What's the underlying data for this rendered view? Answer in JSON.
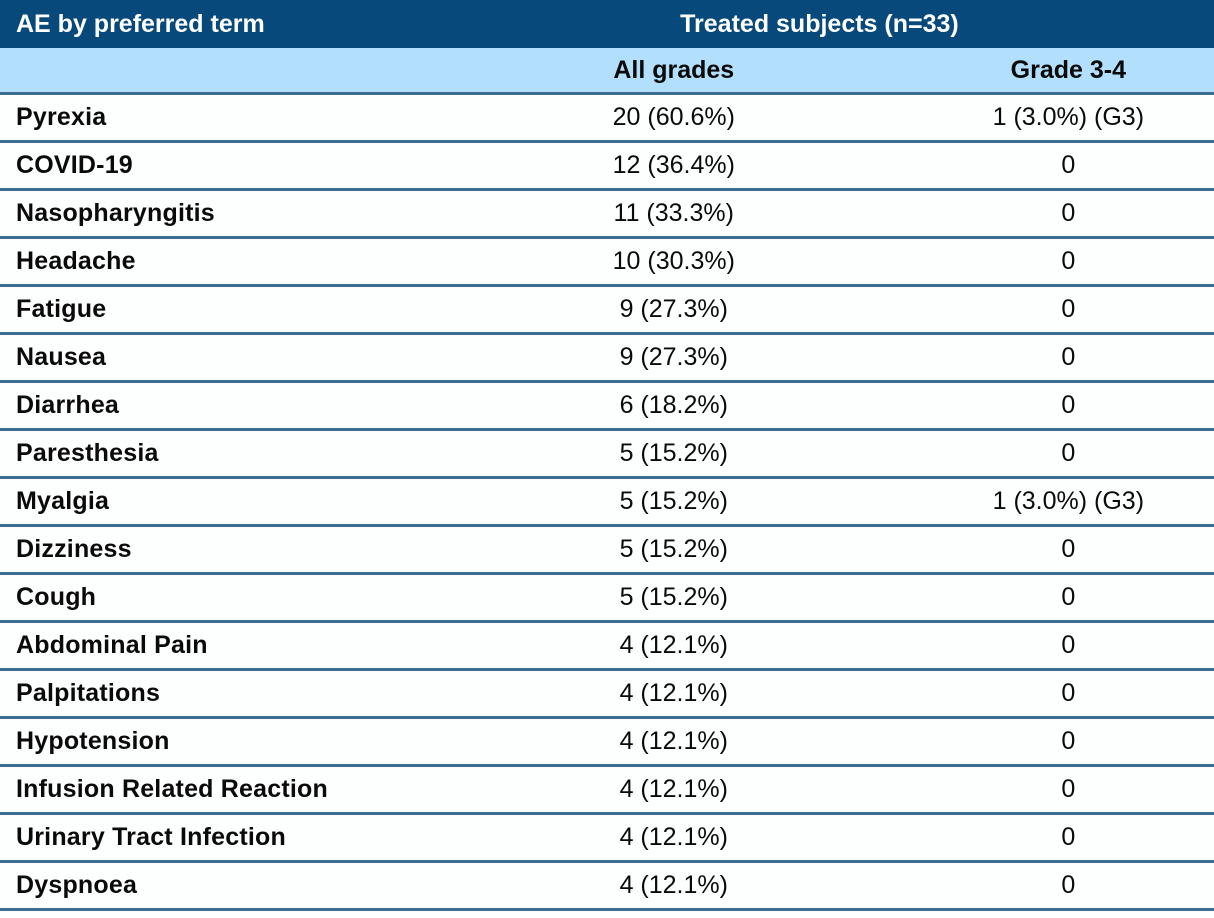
{
  "colors": {
    "header_bg": "#07497a",
    "subheader_bg": "#b2dffb",
    "separator": "#3e6d92",
    "header_text": "#ffffff",
    "body_text": "#0a0a0a"
  },
  "table": {
    "header": {
      "col1": "AE by preferred term",
      "treated_group": "Treated subjects (n=33)",
      "subheaders": {
        "all_grades": "All grades",
        "grade_3_4": "Grade 3-4"
      }
    },
    "rows": [
      {
        "term": "Pyrexia",
        "all_grades": "20 (60.6%)",
        "grade_3_4": "1 (3.0%) (G3)"
      },
      {
        "term": "COVID-19",
        "all_grades": "12 (36.4%)",
        "grade_3_4": "0"
      },
      {
        "term": "Nasopharyngitis",
        "all_grades": "11 (33.3%)",
        "grade_3_4": "0"
      },
      {
        "term": "Headache",
        "all_grades": "10 (30.3%)",
        "grade_3_4": "0"
      },
      {
        "term": "Fatigue",
        "all_grades": "9 (27.3%)",
        "grade_3_4": "0"
      },
      {
        "term": "Nausea",
        "all_grades": "9 (27.3%)",
        "grade_3_4": "0"
      },
      {
        "term": "Diarrhea",
        "all_grades": "6 (18.2%)",
        "grade_3_4": "0"
      },
      {
        "term": "Paresthesia",
        "all_grades": "5 (15.2%)",
        "grade_3_4": "0"
      },
      {
        "term": "Myalgia",
        "all_grades": "5 (15.2%)",
        "grade_3_4": "1 (3.0%) (G3)"
      },
      {
        "term": "Dizziness",
        "all_grades": "5 (15.2%)",
        "grade_3_4": "0"
      },
      {
        "term": "Cough",
        "all_grades": "5 (15.2%)",
        "grade_3_4": "0"
      },
      {
        "term": "Abdominal Pain",
        "all_grades": "4 (12.1%)",
        "grade_3_4": "0"
      },
      {
        "term": "Palpitations",
        "all_grades": "4 (12.1%)",
        "grade_3_4": "0"
      },
      {
        "term": "Hypotension",
        "all_grades": "4 (12.1%)",
        "grade_3_4": "0"
      },
      {
        "term": "Infusion Related Reaction",
        "all_grades": "4 (12.1%)",
        "grade_3_4": "0"
      },
      {
        "term": "Urinary Tract Infection",
        "all_grades": "4 (12.1%)",
        "grade_3_4": "0"
      },
      {
        "term": "Dyspnoea",
        "all_grades": "4 (12.1%)",
        "grade_3_4": "0"
      }
    ]
  }
}
